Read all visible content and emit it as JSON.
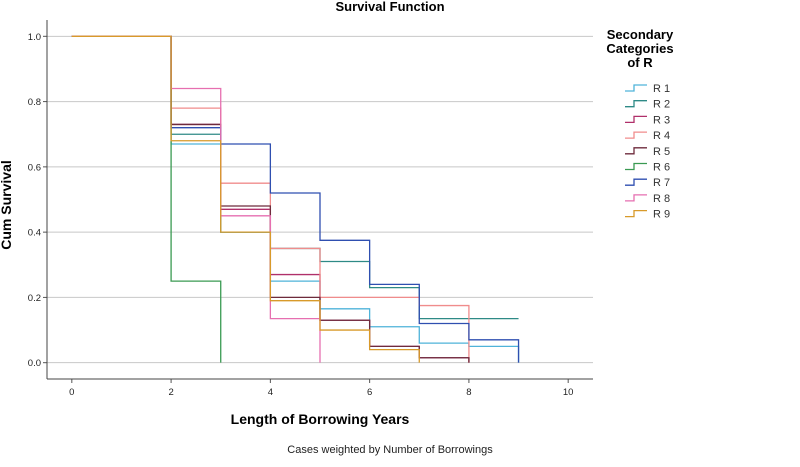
{
  "chart_data": {
    "type": "line",
    "step": true,
    "title": "Survival Function",
    "xlabel": "Length of Borrowing Years",
    "ylabel": "Cum Survival",
    "xlim": [
      -0.5,
      10.5
    ],
    "ylim": [
      -0.05,
      1.05
    ],
    "xticks": [
      "0",
      "2",
      "4",
      "6",
      "8",
      "10"
    ],
    "xtick_values": [
      0,
      2,
      4,
      6,
      8,
      10
    ],
    "yticks": [
      "0.0",
      "0.2",
      "0.4",
      "0.6",
      "0.8",
      "1.0"
    ],
    "ytick_values": [
      0,
      0.2,
      0.4,
      0.6,
      0.8,
      1.0
    ],
    "grid": "horizontal",
    "legend_title": "Secondary Categories of R",
    "legend_title_lines": [
      "Secondary",
      "Categories",
      "of R"
    ],
    "legend_position": "right",
    "footnote": "Cases weighted by Number of Borrowings",
    "series": [
      {
        "name": "R 1",
        "color": "#4fb3d9",
        "x": [
          0,
          2,
          3,
          4,
          5,
          6,
          7,
          8,
          9
        ],
        "y": [
          1.0,
          0.67,
          0.4,
          0.25,
          0.165,
          0.11,
          0.06,
          0.05,
          0.0
        ]
      },
      {
        "name": "R 2",
        "color": "#2e8a86",
        "x": [
          0,
          2,
          3,
          4,
          5,
          6,
          7,
          9
        ],
        "y": [
          1.0,
          0.7,
          0.4,
          0.35,
          0.31,
          0.23,
          0.135,
          0.135
        ]
      },
      {
        "name": "R 3",
        "color": "#b0306a",
        "x": [
          0,
          2,
          3,
          4,
          5,
          6,
          7,
          8
        ],
        "y": [
          1.0,
          0.73,
          0.47,
          0.27,
          0.13,
          0.05,
          0.015,
          0.0
        ]
      },
      {
        "name": "R 4",
        "color": "#f08c8c",
        "x": [
          0,
          2,
          3,
          4,
          5,
          7,
          8
        ],
        "y": [
          1.0,
          0.78,
          0.55,
          0.35,
          0.2,
          0.175,
          0.0
        ]
      },
      {
        "name": "R 5",
        "color": "#6e2b3c",
        "x": [
          0,
          2,
          3,
          4,
          5,
          6,
          7,
          8
        ],
        "y": [
          1.0,
          0.73,
          0.48,
          0.2,
          0.13,
          0.05,
          0.015,
          0.0
        ]
      },
      {
        "name": "R 6",
        "color": "#3a9a52",
        "x": [
          0,
          2,
          3
        ],
        "y": [
          1.0,
          0.25,
          0.0
        ]
      },
      {
        "name": "R 7",
        "color": "#2f4fb0",
        "x": [
          0,
          2,
          3,
          4,
          5,
          6,
          7,
          8,
          9
        ],
        "y": [
          1.0,
          0.72,
          0.67,
          0.52,
          0.375,
          0.24,
          0.12,
          0.07,
          0.0
        ]
      },
      {
        "name": "R 8",
        "color": "#e66fb0",
        "x": [
          0,
          2,
          3,
          4,
          5
        ],
        "y": [
          1.0,
          0.84,
          0.45,
          0.135,
          0.0
        ]
      },
      {
        "name": "R 9",
        "color": "#d89a2a",
        "x": [
          0,
          2,
          3,
          4,
          5,
          6,
          7
        ],
        "y": [
          1.0,
          0.68,
          0.4,
          0.19,
          0.1,
          0.04,
          0.0
        ]
      }
    ]
  }
}
